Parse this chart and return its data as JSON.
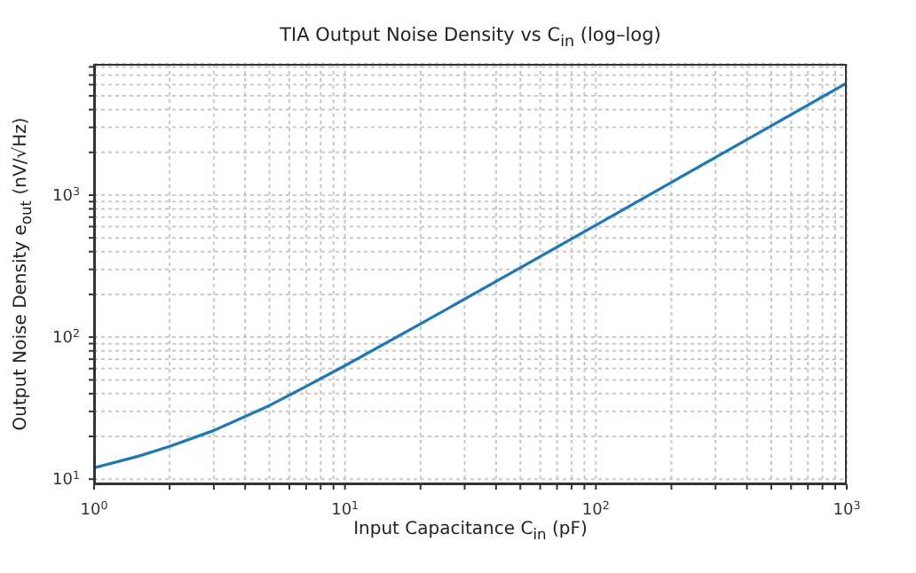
{
  "chart_data": {
    "type": "line",
    "title": "TIA Output Noise Density vs C$_{in}$ (log–log)",
    "xlabel": "Input Capacitance C$_{in}$ (pF)",
    "ylabel": "Output Noise Density e$_{out}$ (nV/√Hz)",
    "x": [
      1,
      1.5,
      2,
      3,
      5,
      7,
      10,
      20,
      50,
      100,
      200,
      500,
      1000
    ],
    "series": [
      {
        "color": "#1f77b4",
        "values": [
          12,
          14.5,
          17,
          22,
          33,
          45,
          63,
          124,
          308,
          615,
          1230,
          3075,
          6150
        ]
      }
    ],
    "log": "xy",
    "grid": true,
    "xlim": [
      1,
      1000
    ],
    "ylim": [
      9.2,
      8400
    ],
    "xticks": [
      {
        "value": 1,
        "label": "10$^{0}$"
      },
      {
        "value": 2,
        "label": null
      },
      {
        "value": 3,
        "label": null
      },
      {
        "value": 4,
        "label": null
      },
      {
        "value": 5,
        "label": null
      },
      {
        "value": 6,
        "label": null
      },
      {
        "value": 7,
        "label": null
      },
      {
        "value": 8,
        "label": null
      },
      {
        "value": 9,
        "label": null
      },
      {
        "value": 10,
        "label": "10$^{1}$"
      },
      {
        "value": 20,
        "label": null
      },
      {
        "value": 30,
        "label": null
      },
      {
        "value": 40,
        "label": null
      },
      {
        "value": 50,
        "label": null
      },
      {
        "value": 60,
        "label": null
      },
      {
        "value": 70,
        "label": null
      },
      {
        "value": 80,
        "label": null
      },
      {
        "value": 90,
        "label": null
      },
      {
        "value": 100,
        "label": "10$^{2}$"
      },
      {
        "value": 200,
        "label": null
      },
      {
        "value": 300,
        "label": null
      },
      {
        "value": 400,
        "label": null
      },
      {
        "value": 500,
        "label": null
      },
      {
        "value": 600,
        "label": null
      },
      {
        "value": 700,
        "label": null
      },
      {
        "value": 800,
        "label": null
      },
      {
        "value": 900,
        "label": null
      },
      {
        "value": 1000,
        "label": "10$^{3}$"
      }
    ],
    "yticks": [
      {
        "value": 10,
        "label": "10$^{1}$"
      },
      {
        "value": 20,
        "label": null
      },
      {
        "value": 30,
        "label": null
      },
      {
        "value": 40,
        "label": null
      },
      {
        "value": 50,
        "label": null
      },
      {
        "value": 60,
        "label": null
      },
      {
        "value": 70,
        "label": null
      },
      {
        "value": 80,
        "label": null
      },
      {
        "value": 90,
        "label": null
      },
      {
        "value": 100,
        "label": "10$^{2}$"
      },
      {
        "value": 200,
        "label": null
      },
      {
        "value": 300,
        "label": null
      },
      {
        "value": 400,
        "label": null
      },
      {
        "value": 500,
        "label": null
      },
      {
        "value": 600,
        "label": null
      },
      {
        "value": 700,
        "label": null
      },
      {
        "value": 800,
        "label": null
      },
      {
        "value": 900,
        "label": null
      },
      {
        "value": 1000,
        "label": "10$^{3}$"
      },
      {
        "value": 2000,
        "label": null
      },
      {
        "value": 3000,
        "label": null
      },
      {
        "value": 4000,
        "label": null
      },
      {
        "value": 5000,
        "label": null
      },
      {
        "value": 6000,
        "label": null
      },
      {
        "value": 7000,
        "label": null
      },
      {
        "value": 8000,
        "label": null
      }
    ]
  }
}
